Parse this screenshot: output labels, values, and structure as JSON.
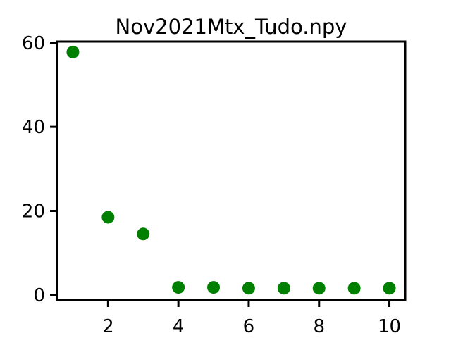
{
  "chart_data": {
    "type": "scatter",
    "title": "Nov2021Mtx_Tudo.npy",
    "xlabel": "",
    "ylabel": "",
    "x": [
      1,
      2,
      3,
      4,
      5,
      6,
      7,
      8,
      9,
      10
    ],
    "y": [
      57.8,
      18.5,
      14.5,
      1.8,
      1.8,
      1.6,
      1.6,
      1.6,
      1.6,
      1.6
    ],
    "xlim": [
      0.55,
      10.45
    ],
    "ylim": [
      -1.2,
      60.3
    ],
    "xticks": [
      2,
      4,
      6,
      8,
      10
    ],
    "xtick_labels": [
      "2",
      "4",
      "6",
      "8",
      "10"
    ],
    "yticks": [
      0,
      20,
      40,
      60
    ],
    "ytick_labels": [
      "0",
      "20",
      "40",
      "60"
    ],
    "grid": false,
    "legend": "none",
    "marker_color": "#008000"
  }
}
